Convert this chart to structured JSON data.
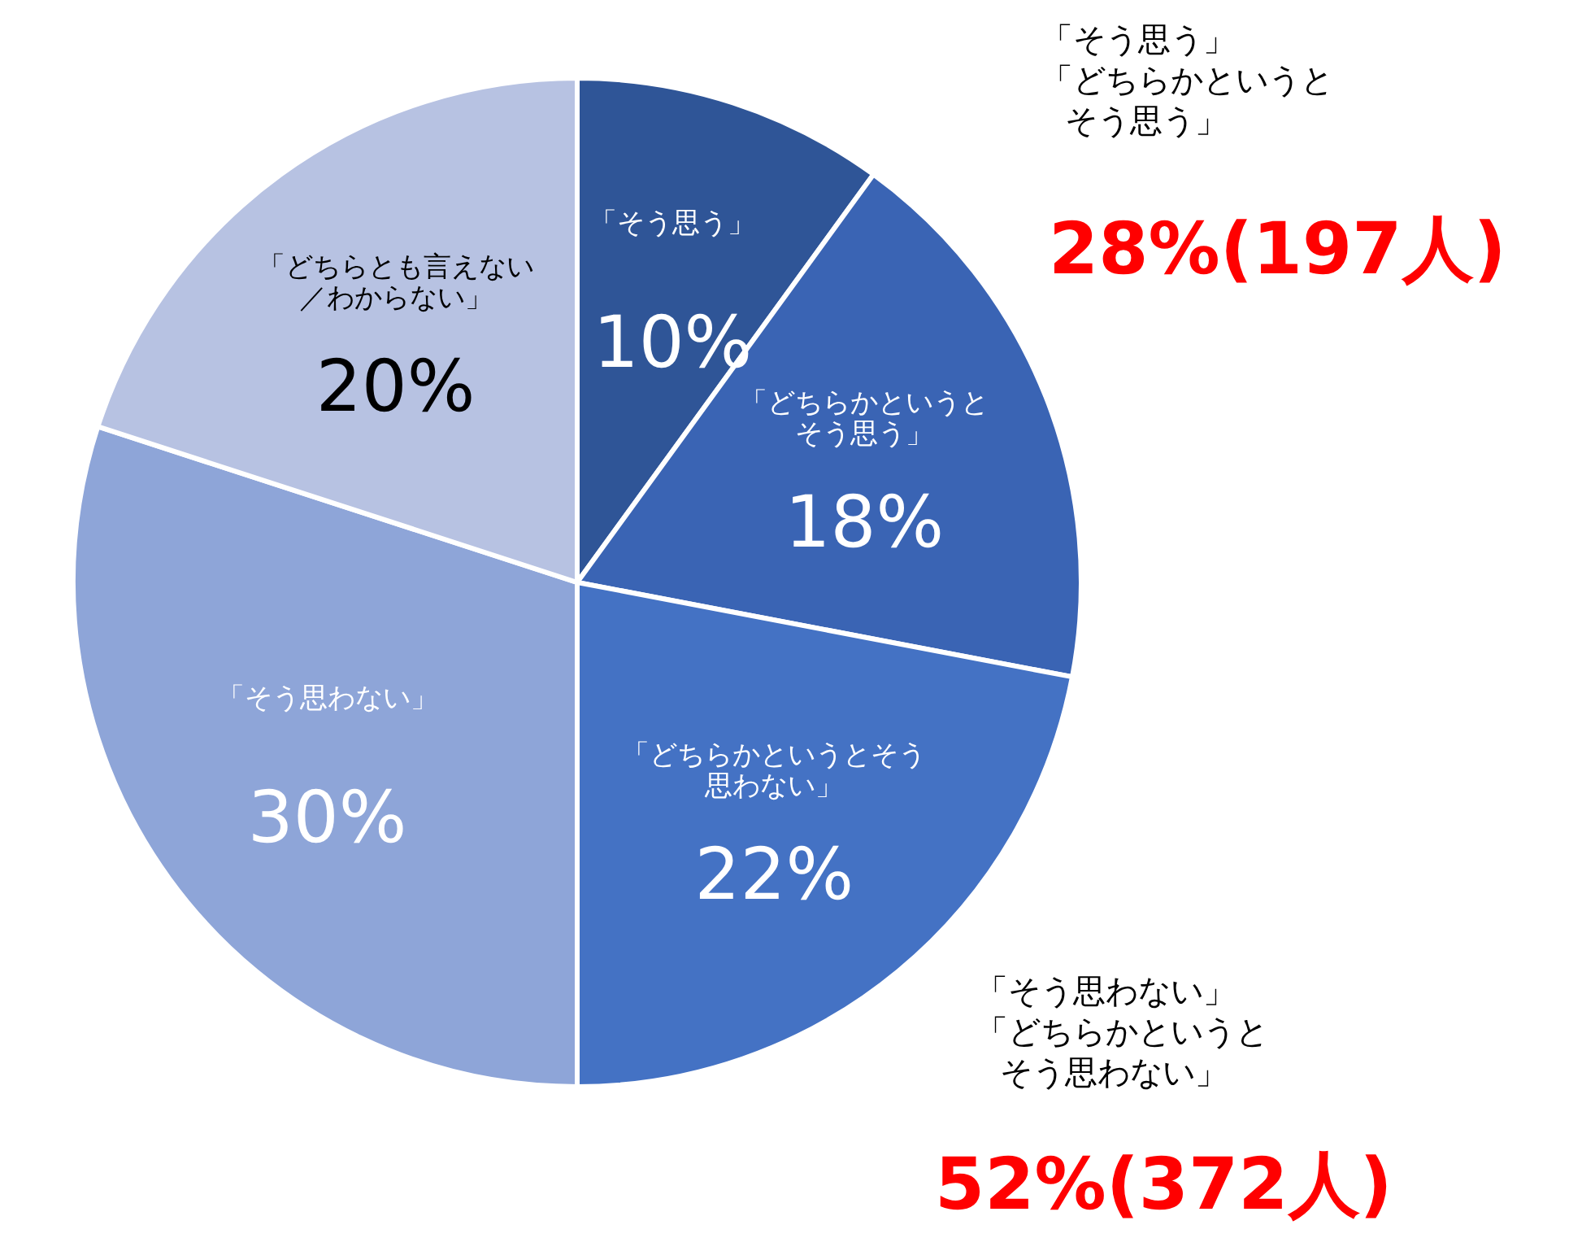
{
  "chart_data": {
    "type": "pie",
    "categories": [
      "「そう思う」",
      "「どちらかというとそう思う」",
      "「どちらかというとそう思わない」",
      "「そう思わない」",
      "「どちらとも言えない／わからない」"
    ],
    "values": [
      10,
      18,
      22,
      30,
      20
    ],
    "value_labels": [
      "10%",
      "18%",
      "22%",
      "30%",
      "20%"
    ],
    "colors": [
      "#2f5597",
      "#3a64b4",
      "#4472c4",
      "#8ea5d8",
      "#b7c2e2"
    ],
    "annotations": [
      "「そう思う」",
      "「どちらかというと",
      "そう思う」",
      "28%(197人)",
      "「そう思わない」",
      "「どちらかというと",
      "そう思わない」",
      "52%(372人)"
    ]
  }
}
